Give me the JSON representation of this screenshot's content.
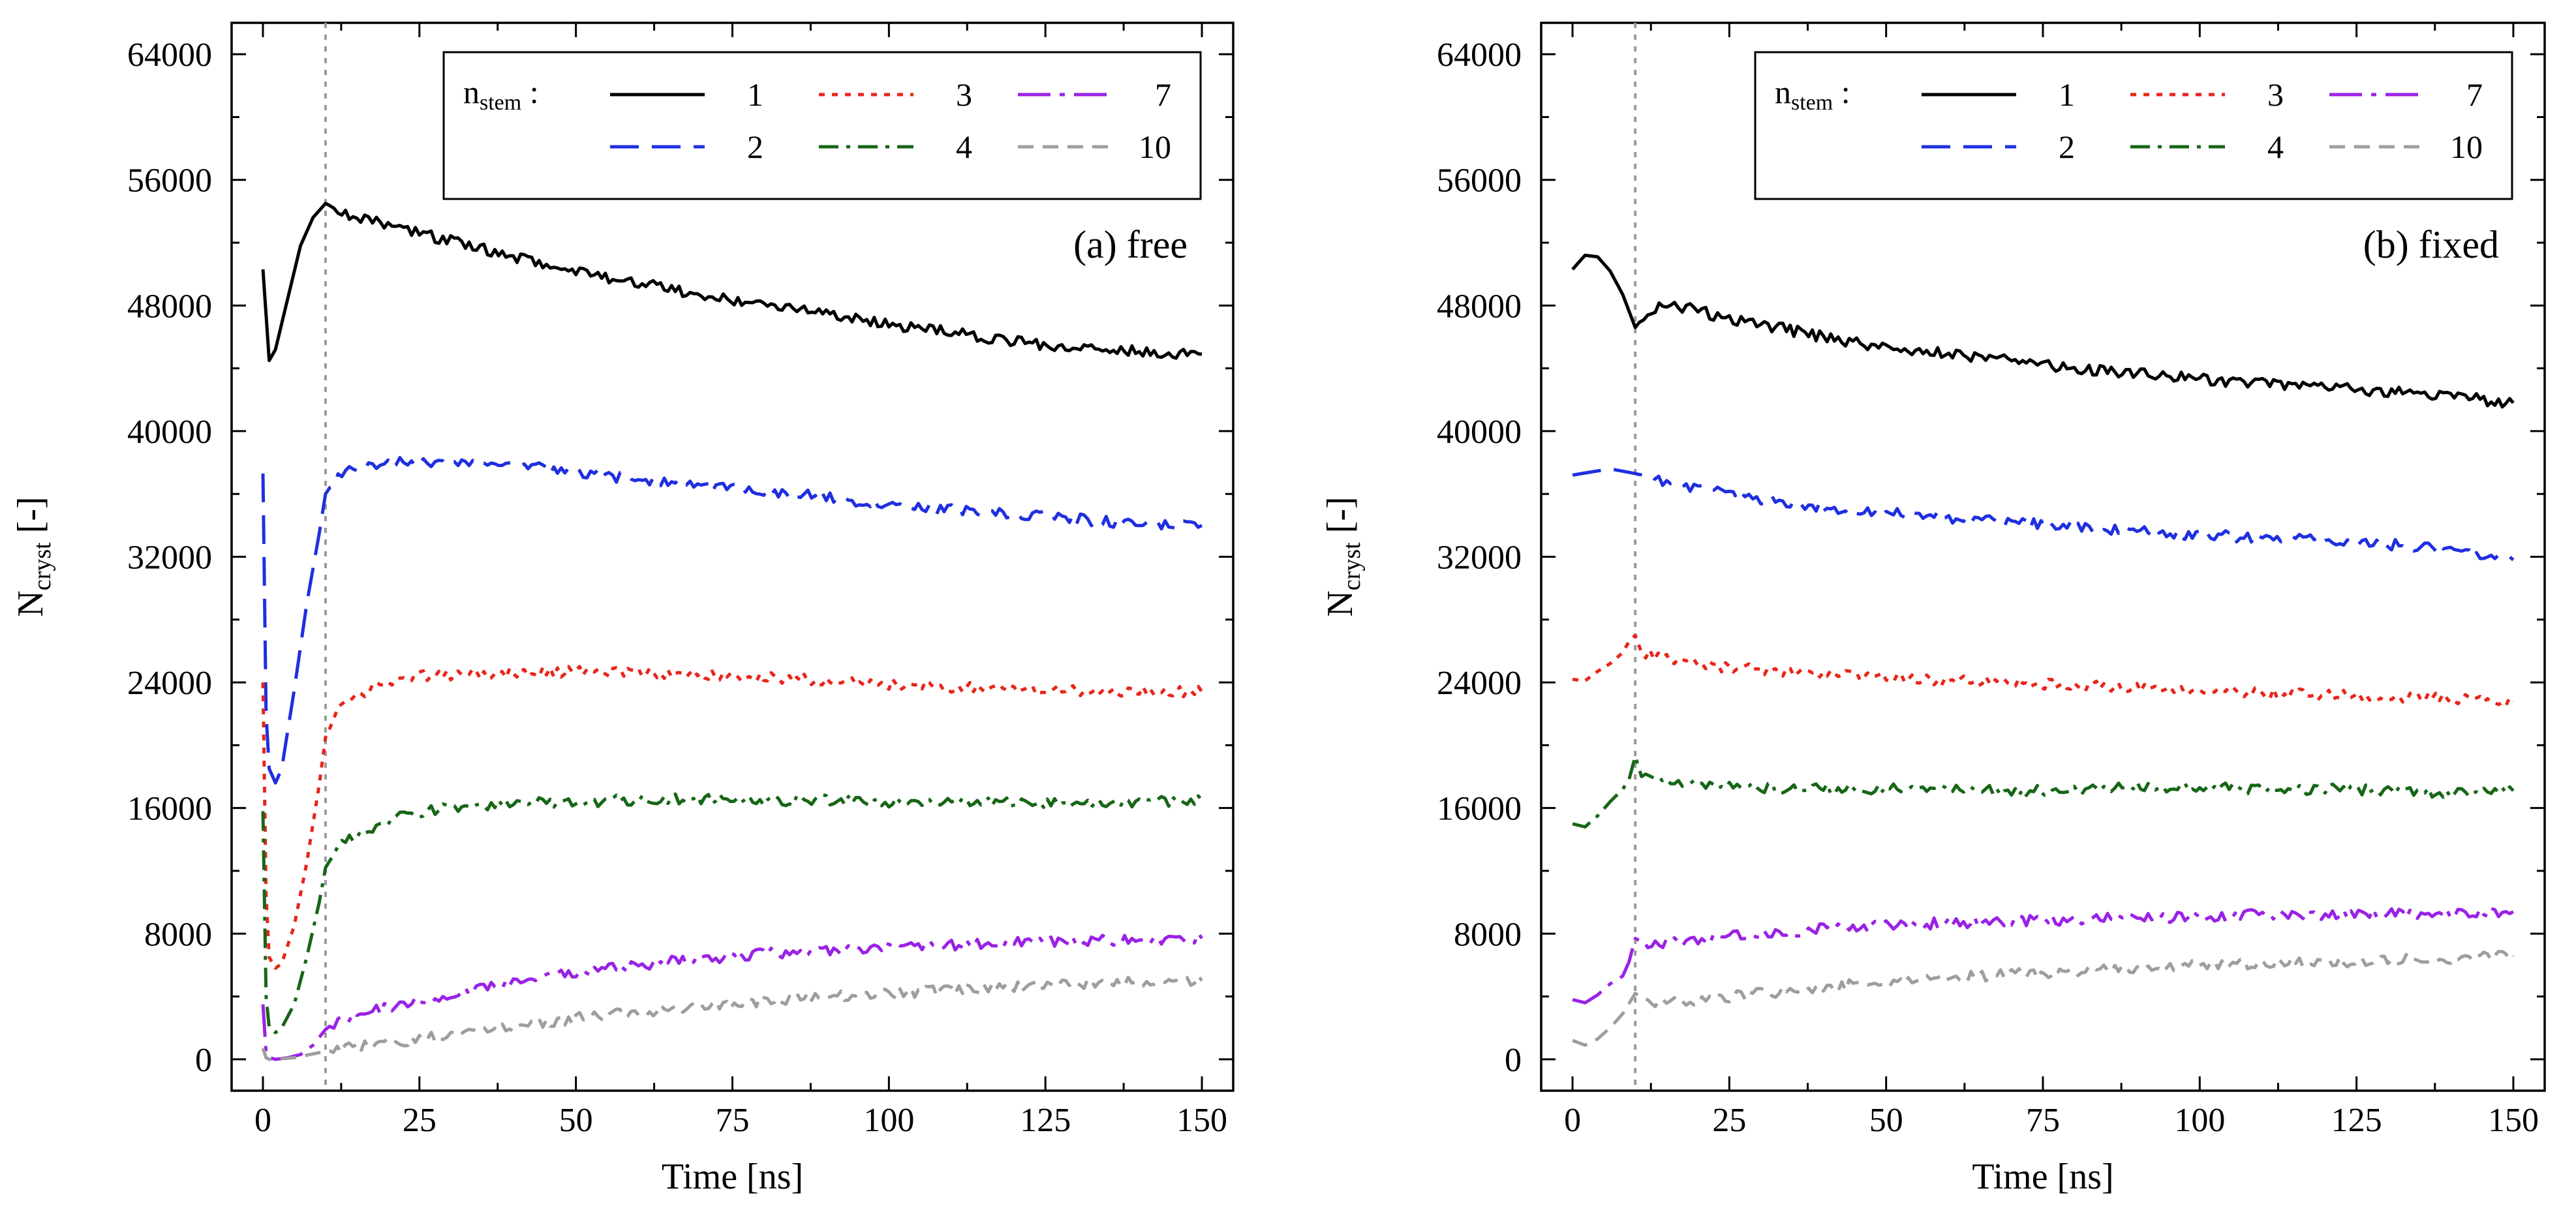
{
  "chart_data": [
    {
      "type": "line",
      "panel_label": "(a) free",
      "xlabel": "Time [ns]",
      "ylabel_main": "N",
      "ylabel_sub": "cryst",
      "ylabel_suffix": " [-]",
      "xlim": [
        -5,
        155
      ],
      "ylim": [
        -2000,
        66000
      ],
      "xticks": [
        0,
        25,
        50,
        75,
        100,
        125,
        150
      ],
      "yticks": [
        0,
        8000,
        16000,
        24000,
        32000,
        40000,
        48000,
        56000,
        64000
      ],
      "vline_x": 10,
      "legend": {
        "title_main": "n",
        "title_sub": "stem",
        "title_suffix": " :",
        "placement": "top-right"
      },
      "series": [
        {
          "name": "1",
          "color": "#000000",
          "dash": "solid",
          "x": [
            0,
            1,
            2,
            4,
            6,
            8,
            10,
            12,
            15,
            20,
            25,
            30,
            40,
            50,
            60,
            70,
            80,
            90,
            100,
            110,
            120,
            130,
            140,
            150
          ],
          "values": [
            50300,
            44500,
            45200,
            48500,
            51800,
            53600,
            54500,
            54100,
            53600,
            53100,
            52600,
            52100,
            51100,
            50100,
            49400,
            48700,
            48000,
            47500,
            46800,
            46300,
            45700,
            45300,
            45100,
            44900
          ]
        },
        {
          "name": "2",
          "color": "#1f2fe0",
          "dash": "long",
          "x": [
            0,
            0.5,
            1,
            2,
            3,
            5,
            7,
            9,
            10,
            12,
            15,
            20,
            25,
            30,
            40,
            50,
            60,
            70,
            80,
            90,
            100,
            110,
            120,
            130,
            140,
            150
          ],
          "values": [
            37300,
            22000,
            18500,
            17600,
            18500,
            23500,
            29000,
            33500,
            36000,
            37200,
            37600,
            37900,
            38100,
            38000,
            37800,
            37400,
            36900,
            36500,
            36200,
            35800,
            35300,
            35000,
            34700,
            34400,
            34100,
            34000
          ]
        },
        {
          "name": "3",
          "color": "#e8251a",
          "dash": "dot",
          "x": [
            0,
            0.5,
            1,
            2,
            3,
            5,
            7,
            9,
            10,
            12,
            15,
            20,
            25,
            30,
            40,
            50,
            60,
            70,
            80,
            90,
            100,
            110,
            120,
            130,
            140,
            150
          ],
          "values": [
            24000,
            10500,
            6500,
            5800,
            6100,
            8500,
            12500,
            17500,
            20500,
            22200,
            23200,
            24000,
            24400,
            24500,
            24600,
            24700,
            24600,
            24500,
            24300,
            24100,
            23900,
            23700,
            23600,
            23500,
            23400,
            23400
          ]
        },
        {
          "name": "4",
          "color": "#176617",
          "dash": "dashdot",
          "x": [
            0,
            0.5,
            1,
            2,
            3,
            5,
            7,
            9,
            10,
            12,
            15,
            20,
            25,
            30,
            40,
            50,
            60,
            70,
            80,
            90,
            100,
            110,
            120,
            130,
            140,
            150
          ],
          "values": [
            15800,
            4000,
            2000,
            1700,
            2000,
            3500,
            6500,
            10000,
            12200,
            13500,
            14300,
            15200,
            15700,
            16000,
            16300,
            16400,
            16500,
            16600,
            16500,
            16500,
            16400,
            16400,
            16300,
            16300,
            16400,
            16500
          ]
        },
        {
          "name": "7",
          "color": "#9a22e6",
          "dash": "dashlong",
          "x": [
            0,
            0.5,
            1,
            2,
            4,
            6,
            8,
            10,
            12,
            15,
            20,
            25,
            30,
            40,
            50,
            60,
            70,
            80,
            90,
            100,
            110,
            120,
            130,
            140,
            150
          ],
          "values": [
            3500,
            400,
            100,
            0,
            100,
            300,
            900,
            1900,
            2500,
            2900,
            3300,
            3700,
            4100,
            4900,
            5500,
            6000,
            6400,
            6700,
            6900,
            7100,
            7300,
            7400,
            7500,
            7600,
            7700
          ]
        },
        {
          "name": "10",
          "color": "#9e9e9e",
          "dash": "dashgray",
          "x": [
            0,
            0.5,
            1,
            2,
            5,
            10,
            15,
            20,
            25,
            30,
            40,
            50,
            60,
            70,
            80,
            90,
            100,
            110,
            120,
            130,
            140,
            150
          ],
          "values": [
            700,
            100,
            0,
            0,
            100,
            500,
            800,
            1000,
            1300,
            1600,
            2100,
            2600,
            3000,
            3400,
            3700,
            4000,
            4200,
            4400,
            4600,
            4800,
            4900,
            5000
          ]
        }
      ]
    },
    {
      "type": "line",
      "panel_label": "(b) fixed",
      "xlabel": "Time [ns]",
      "ylabel_main": "N",
      "ylabel_sub": "cryst",
      "ylabel_suffix": " [-]",
      "xlim": [
        -5,
        155
      ],
      "ylim": [
        -2000,
        66000
      ],
      "xticks": [
        0,
        25,
        50,
        75,
        100,
        125,
        150
      ],
      "yticks": [
        0,
        8000,
        16000,
        24000,
        32000,
        40000,
        48000,
        56000,
        64000
      ],
      "vline_x": 10,
      "legend": {
        "title_main": "n",
        "title_sub": "stem",
        "title_suffix": " :",
        "placement": "top-right"
      },
      "series": [
        {
          "name": "1",
          "color": "#000000",
          "dash": "solid",
          "x": [
            0,
            2,
            4,
            6,
            8,
            10,
            12,
            15,
            20,
            25,
            30,
            40,
            50,
            60,
            70,
            80,
            90,
            100,
            110,
            120,
            130,
            140,
            150
          ],
          "values": [
            50300,
            51200,
            51100,
            50200,
            48700,
            46600,
            47600,
            48100,
            47700,
            47100,
            46800,
            46000,
            45300,
            44900,
            44500,
            44000,
            43700,
            43300,
            43000,
            42800,
            42500,
            42200,
            41800
          ]
        },
        {
          "name": "2",
          "color": "#1f2fe0",
          "dash": "long",
          "x": [
            0,
            3,
            6,
            10,
            15,
            20,
            25,
            30,
            40,
            50,
            60,
            70,
            80,
            90,
            100,
            110,
            120,
            130,
            140,
            150
          ],
          "values": [
            37200,
            37400,
            37600,
            37300,
            36800,
            36400,
            36000,
            35700,
            35100,
            34800,
            34500,
            34200,
            33900,
            33600,
            33400,
            33200,
            33000,
            32800,
            32500,
            31800
          ]
        },
        {
          "name": "3",
          "color": "#e8251a",
          "dash": "dot",
          "x": [
            0,
            2,
            4,
            6,
            8,
            9,
            10,
            11,
            13,
            15,
            20,
            25,
            30,
            40,
            50,
            60,
            70,
            80,
            90,
            100,
            110,
            120,
            130,
            140,
            150
          ],
          "values": [
            24200,
            24100,
            24700,
            25200,
            25900,
            26600,
            27000,
            25900,
            25700,
            25500,
            25100,
            24900,
            24800,
            24500,
            24300,
            24100,
            24000,
            23800,
            23700,
            23500,
            23300,
            23200,
            23100,
            23000,
            22800
          ]
        },
        {
          "name": "4",
          "color": "#176617",
          "dash": "dashdot",
          "x": [
            0,
            2,
            4,
            6,
            8,
            9,
            10,
            11,
            13,
            15,
            20,
            25,
            30,
            40,
            50,
            60,
            70,
            80,
            90,
            100,
            110,
            120,
            130,
            140,
            150
          ],
          "values": [
            15000,
            14800,
            15500,
            16400,
            17200,
            17800,
            19300,
            18000,
            18200,
            17800,
            17600,
            17400,
            17300,
            17200,
            17200,
            17100,
            17100,
            17200,
            17300,
            17300,
            17200,
            17200,
            17100,
            17000,
            17100
          ]
        },
        {
          "name": "7",
          "color": "#9a22e6",
          "dash": "dashlong",
          "x": [
            0,
            2,
            4,
            6,
            8,
            9,
            10,
            12,
            15,
            20,
            25,
            30,
            40,
            50,
            60,
            70,
            80,
            90,
            100,
            110,
            120,
            130,
            140,
            150
          ],
          "values": [
            3800,
            3600,
            4100,
            4800,
            5300,
            6200,
            7700,
            7300,
            7400,
            7600,
            7800,
            8000,
            8300,
            8500,
            8700,
            8800,
            8900,
            9000,
            9100,
            9200,
            9200,
            9300,
            9300,
            9400
          ]
        },
        {
          "name": "10",
          "color": "#9e9e9e",
          "dash": "dashgray",
          "x": [
            0,
            2,
            4,
            6,
            8,
            10,
            12,
            15,
            20,
            25,
            30,
            40,
            50,
            60,
            70,
            80,
            90,
            100,
            110,
            120,
            130,
            140,
            150
          ],
          "values": [
            1200,
            900,
            1300,
            2000,
            2900,
            4200,
            3700,
            3500,
            3800,
            4000,
            4200,
            4600,
            4900,
            5200,
            5400,
            5600,
            5800,
            6000,
            6100,
            6200,
            6300,
            6400,
            6600
          ]
        }
      ]
    }
  ]
}
